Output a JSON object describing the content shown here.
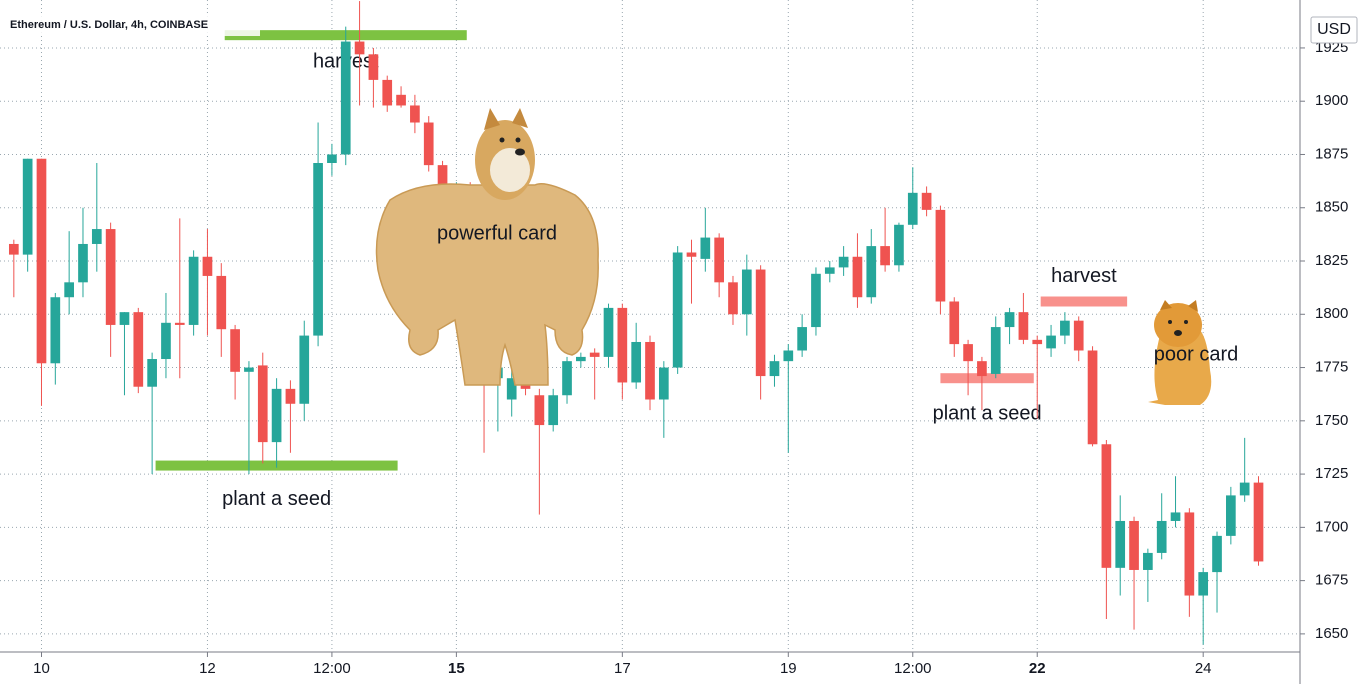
{
  "chart_data": {
    "type": "candlestick",
    "title": "Ethereum / U.S. Dollar, 4h, COINBASE",
    "currency": "USD",
    "up_color": "#26a69a",
    "down_color": "#ef5350",
    "grid": true,
    "x": [
      -8,
      -4,
      0,
      4,
      8,
      12,
      16,
      20,
      24,
      28,
      32,
      36,
      40,
      44,
      48,
      52,
      56,
      60,
      64,
      68,
      72,
      76,
      80,
      84,
      88,
      92,
      96,
      100,
      104,
      108,
      112,
      116,
      120,
      124,
      128,
      132,
      136,
      140,
      144,
      148,
      152,
      156,
      160,
      164,
      168,
      172,
      176,
      180,
      184,
      188,
      192,
      196,
      200,
      204,
      208,
      212,
      216,
      220,
      224,
      228,
      232,
      236,
      240,
      244,
      248,
      252,
      256,
      260,
      264,
      268,
      272,
      276,
      280,
      284,
      288,
      292,
      296,
      300,
      304,
      308,
      312,
      316,
      320,
      324,
      328,
      332,
      336,
      340,
      344,
      348,
      352
    ],
    "open": [
      1833,
      1828,
      1873,
      1777,
      1808,
      1815,
      1833,
      1840,
      1795,
      1801,
      1766,
      1779,
      1796,
      1795,
      1827,
      1818,
      1793,
      1773,
      1776,
      1740,
      1765,
      1758,
      1790,
      1871,
      1875,
      1928,
      1922,
      1910,
      1903,
      1898,
      1890,
      1870,
      1850,
      1860,
      1820,
      1770,
      1760,
      1770,
      1762,
      1748,
      1762,
      1778,
      1782,
      1780,
      1803,
      1768,
      1787,
      1760,
      1775,
      1829,
      1826,
      1836,
      1815,
      1800,
      1821,
      1771,
      1778,
      1783,
      1794,
      1819,
      1822,
      1827,
      1808,
      1832,
      1823,
      1842,
      1857,
      1849,
      1806,
      1786,
      1778,
      1772,
      1794,
      1801,
      1788,
      1784,
      1790,
      1797,
      1783,
      1739,
      1681,
      1703,
      1680,
      1688,
      1703,
      1707,
      1668,
      1679,
      1696,
      1715,
      1721
    ],
    "high": [
      1835,
      1873,
      1873,
      1810,
      1839,
      1850,
      1871,
      1843,
      1801,
      1803,
      1782,
      1810,
      1845,
      1830,
      1840,
      1824,
      1795,
      1778,
      1782,
      1770,
      1769,
      1797,
      1890,
      1880,
      1935,
      1947,
      1925,
      1912,
      1907,
      1903,
      1893,
      1872,
      1862,
      1862,
      1822,
      1778,
      1775,
      1772,
      1765,
      1765,
      1780,
      1782,
      1784,
      1805,
      1805,
      1796,
      1790,
      1778,
      1832,
      1835,
      1850,
      1838,
      1818,
      1828,
      1823,
      1781,
      1786,
      1800,
      1822,
      1825,
      1832,
      1838,
      1840,
      1850,
      1843,
      1869,
      1860,
      1851,
      1808,
      1788,
      1780,
      1799,
      1803,
      1810,
      1790,
      1795,
      1801,
      1799,
      1785,
      1741,
      1715,
      1705,
      1690,
      1716,
      1724,
      1709,
      1681,
      1698,
      1719,
      1742,
      1724
    ],
    "low": [
      1808,
      1820,
      1757,
      1767,
      1800,
      1808,
      1820,
      1780,
      1762,
      1763,
      1725,
      1770,
      1770,
      1790,
      1790,
      1780,
      1760,
      1725,
      1730,
      1728,
      1735,
      1750,
      1785,
      1865,
      1870,
      1898,
      1897,
      1895,
      1897,
      1885,
      1867,
      1847,
      1848,
      1818,
      1735,
      1745,
      1752,
      1762,
      1706,
      1745,
      1758,
      1775,
      1760,
      1775,
      1760,
      1765,
      1755,
      1742,
      1772,
      1805,
      1820,
      1808,
      1795,
      1790,
      1760,
      1766,
      1735,
      1780,
      1790,
      1815,
      1818,
      1803,
      1805,
      1820,
      1820,
      1840,
      1846,
      1800,
      1780,
      1762,
      1755,
      1770,
      1786,
      1786,
      1751,
      1780,
      1786,
      1778,
      1738,
      1657,
      1668,
      1652,
      1665,
      1685,
      1700,
      1658,
      1645,
      1660,
      1692,
      1712,
      1682
    ],
    "close": [
      1828,
      1873,
      1777,
      1808,
      1815,
      1833,
      1840,
      1795,
      1801,
      1766,
      1779,
      1796,
      1795,
      1827,
      1818,
      1793,
      1773,
      1775,
      1740,
      1765,
      1758,
      1790,
      1871,
      1875,
      1928,
      1922,
      1910,
      1898,
      1898,
      1890,
      1870,
      1850,
      1860,
      1820,
      1770,
      1775,
      1770,
      1765,
      1748,
      1762,
      1778,
      1780,
      1780,
      1803,
      1768,
      1787,
      1760,
      1775,
      1829,
      1827,
      1836,
      1815,
      1800,
      1821,
      1771,
      1778,
      1783,
      1794,
      1819,
      1822,
      1827,
      1808,
      1832,
      1823,
      1842,
      1857,
      1849,
      1806,
      1786,
      1778,
      1771,
      1794,
      1801,
      1788,
      1786,
      1790,
      1797,
      1783,
      1739,
      1681,
      1703,
      1680,
      1688,
      1703,
      1707,
      1668,
      1679,
      1696,
      1715,
      1721,
      1684
    ],
    "xlim": [
      -12,
      364
    ],
    "xticks": [
      {
        "value": 0,
        "label": "10"
      },
      {
        "value": 48,
        "label": "12"
      },
      {
        "value": 84,
        "label": "12:00"
      },
      {
        "value": 120,
        "label": "15"
      },
      {
        "value": 168,
        "label": "17"
      },
      {
        "value": 216,
        "label": "19"
      },
      {
        "value": 252,
        "label": "12:00"
      },
      {
        "value": 288,
        "label": "22"
      },
      {
        "value": 336,
        "label": "24"
      }
    ],
    "ylim": [
      1641.5,
      1947.5
    ],
    "yticks": [
      1650,
      1675,
      1700,
      1725,
      1750,
      1775,
      1800,
      1825,
      1850,
      1875,
      1900,
      1925
    ],
    "levels": [
      {
        "label": "harvest",
        "value": 1931,
        "x": [
          53,
          123
        ],
        "color": "#7dc242"
      },
      {
        "label": "plant a seed",
        "value": 1729,
        "x": [
          33,
          103
        ],
        "color": "#7dc242"
      },
      {
        "label": "plant a seed",
        "value": 1770,
        "x": [
          260,
          287
        ],
        "color": "#f8918c"
      },
      {
        "label": "harvest",
        "value": 1806,
        "x": [
          289,
          314
        ],
        "color": "#f8918c"
      }
    ],
    "annotations": [
      "powerful card",
      "poor card"
    ]
  }
}
